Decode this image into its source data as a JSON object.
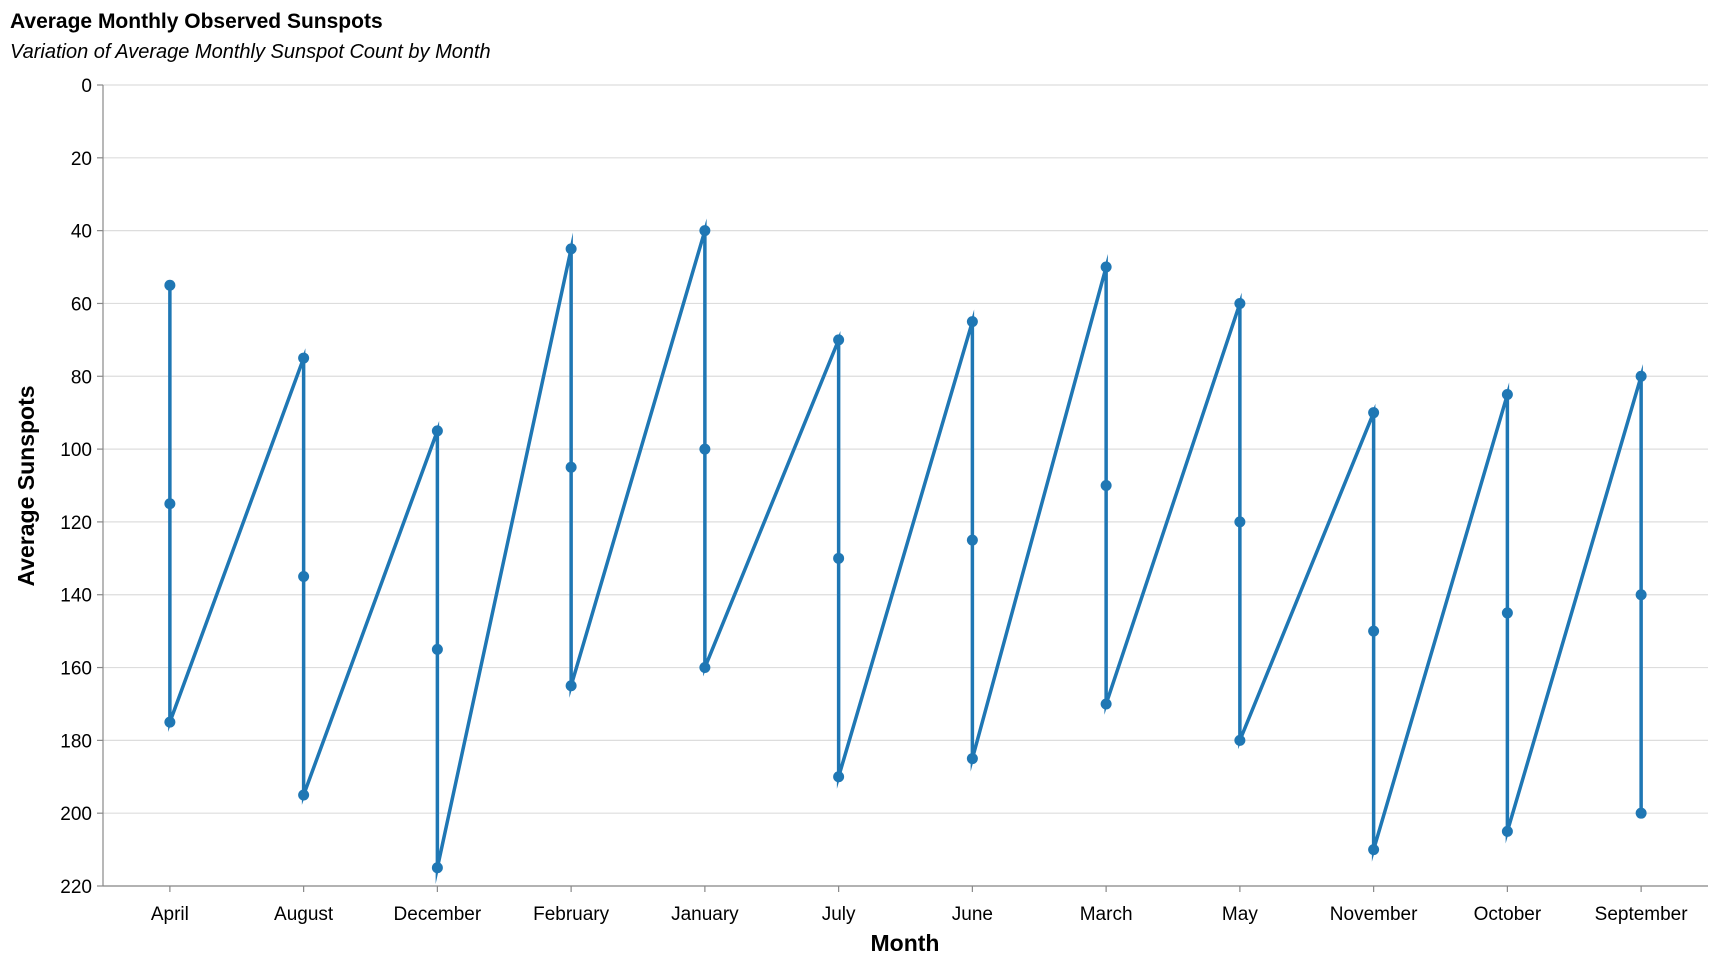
{
  "chart_data": {
    "type": "line",
    "title": "Average Monthly Observed Sunspots",
    "subtitle": "Variation of Average Monthly Sunspot Count by Month",
    "xlabel": "Month",
    "ylabel": "Average Sunspots",
    "y_reversed": true,
    "ylim": [
      0,
      220
    ],
    "yticks": [
      0,
      20,
      40,
      60,
      80,
      100,
      120,
      140,
      160,
      180,
      200,
      220
    ],
    "grid": true,
    "color": "#1f77b4",
    "categories": [
      "April",
      "August",
      "December",
      "February",
      "January",
      "July",
      "June",
      "March",
      "May",
      "November",
      "October",
      "September"
    ],
    "points": [
      {
        "x": "April",
        "y": 55
      },
      {
        "x": "April",
        "y": 115
      },
      {
        "x": "April",
        "y": 175
      },
      {
        "x": "August",
        "y": 75
      },
      {
        "x": "August",
        "y": 135
      },
      {
        "x": "August",
        "y": 195
      },
      {
        "x": "December",
        "y": 95
      },
      {
        "x": "December",
        "y": 155
      },
      {
        "x": "December",
        "y": 215
      },
      {
        "x": "February",
        "y": 45
      },
      {
        "x": "February",
        "y": 105
      },
      {
        "x": "February",
        "y": 165
      },
      {
        "x": "January",
        "y": 40
      },
      {
        "x": "January",
        "y": 100
      },
      {
        "x": "January",
        "y": 160
      },
      {
        "x": "July",
        "y": 70
      },
      {
        "x": "July",
        "y": 130
      },
      {
        "x": "July",
        "y": 190
      },
      {
        "x": "June",
        "y": 65
      },
      {
        "x": "June",
        "y": 125
      },
      {
        "x": "June",
        "y": 185
      },
      {
        "x": "March",
        "y": 50
      },
      {
        "x": "March",
        "y": 110
      },
      {
        "x": "March",
        "y": 170
      },
      {
        "x": "May",
        "y": 60
      },
      {
        "x": "May",
        "y": 120
      },
      {
        "x": "May",
        "y": 180
      },
      {
        "x": "November",
        "y": 90
      },
      {
        "x": "November",
        "y": 150
      },
      {
        "x": "November",
        "y": 210
      },
      {
        "x": "October",
        "y": 85
      },
      {
        "x": "October",
        "y": 145
      },
      {
        "x": "October",
        "y": 205
      },
      {
        "x": "September",
        "y": 80
      },
      {
        "x": "September",
        "y": 140
      },
      {
        "x": "September",
        "y": 200
      }
    ]
  }
}
